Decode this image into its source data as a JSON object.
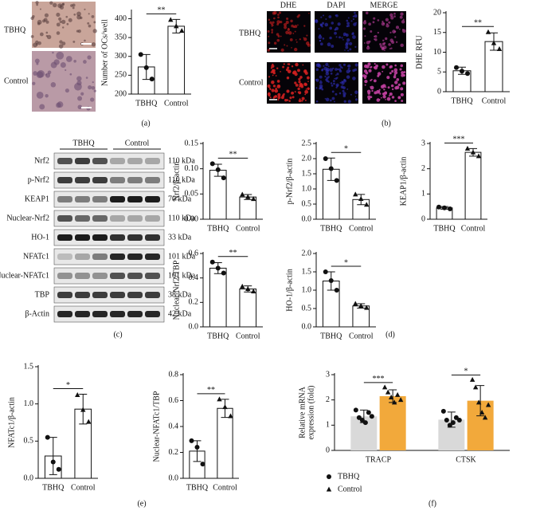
{
  "panel_labels": [
    "(a)",
    "(b)",
    "(c)",
    "(d)",
    "(e)",
    "(f)"
  ],
  "micrographs_a": {
    "rows": [
      "TBHQ",
      "Control"
    ]
  },
  "micrographs_b": {
    "columns": [
      "DHE",
      "DAPI",
      "MERGE"
    ],
    "rows": [
      "TBHQ",
      "Control"
    ]
  },
  "blot": {
    "groups": [
      "TBHQ",
      "Control"
    ],
    "rows": [
      {
        "label": "Nrf2",
        "kda": "110 kDa"
      },
      {
        "label": "p-Nrf2",
        "kda": "110 kDa"
      },
      {
        "label": "KEAP1",
        "kda": "70 kDa"
      },
      {
        "label": "Nuclear-Nrf2",
        "kda": "110 kDa"
      },
      {
        "label": "HO-1",
        "kda": "33 kDa"
      },
      {
        "label": "NFATc1",
        "kda": "101 kDa"
      },
      {
        "label": "Nuclear-NFATc1",
        "kda": "101 kDa"
      },
      {
        "label": "TBP",
        "kda": "38 kDa"
      },
      {
        "label": "β-Actin",
        "kda": "42 kDa"
      }
    ]
  },
  "chart_data": [
    {
      "type": "bar",
      "ylabel": [
        "Number of OCs/well"
      ],
      "categories": [
        "TBHQ",
        "Control"
      ],
      "values": [
        272,
        380
      ],
      "errors": [
        33,
        18
      ],
      "points": [
        [
          305,
          270,
          240
        ],
        [
          397,
          380,
          368
        ]
      ],
      "markers": [
        "circle",
        "triangle"
      ],
      "significance": "**",
      "ylim": [
        200,
        420
      ],
      "yticks": [
        200,
        250,
        300,
        350,
        400
      ]
    },
    {
      "type": "bar",
      "ylabel": [
        "DHE RFU"
      ],
      "categories": [
        "TBHQ",
        "Control"
      ],
      "values": [
        5.3,
        12.7
      ],
      "errors": [
        0.9,
        2.2
      ],
      "points": [
        [
          6.1,
          5.2,
          4.6
        ],
        [
          15.1,
          12.3,
          10.8
        ]
      ],
      "markers": [
        "circle",
        "triangle"
      ],
      "significance": "**",
      "ylim": [
        0,
        20
      ],
      "yticks": [
        0,
        5,
        10,
        15,
        20
      ]
    },
    {
      "type": "bar",
      "ylabel": [
        "Nrf2/β-actin"
      ],
      "categories": [
        "TBHQ",
        "Control"
      ],
      "values": [
        0.097,
        0.044
      ],
      "errors": [
        0.012,
        0.005
      ],
      "points": [
        [
          0.11,
          0.098,
          0.082
        ],
        [
          0.049,
          0.044,
          0.04
        ]
      ],
      "markers": [
        "circle",
        "triangle"
      ],
      "significance": "**",
      "ylim": [
        0,
        0.15
      ],
      "yticks": [
        {
          "value": 0,
          "label": "0.00"
        },
        0.05,
        {
          "value": 0.1,
          "label": "0.10"
        },
        0.15
      ]
    },
    {
      "type": "bar",
      "ylabel": [
        "p-Nrf2/β-actin"
      ],
      "categories": [
        "TBHQ",
        "Control"
      ],
      "values": [
        1.65,
        0.65
      ],
      "errors": [
        0.37,
        0.17
      ],
      "points": [
        [
          2.0,
          1.67,
          1.28
        ],
        [
          0.82,
          0.67,
          0.48
        ]
      ],
      "markers": [
        "circle",
        "triangle"
      ],
      "significance": "*",
      "ylim": [
        0,
        2.5
      ],
      "yticks": [
        {
          "value": 0,
          "label": "0.0"
        },
        0.5,
        {
          "value": 1,
          "label": "1.0"
        },
        1.5,
        {
          "value": 2,
          "label": "2.0"
        },
        2.5
      ]
    },
    {
      "type": "bar",
      "ylabel": [
        "KEAP1/β-actin"
      ],
      "categories": [
        "TBHQ",
        "Control"
      ],
      "values": [
        0.45,
        2.65
      ],
      "errors": [
        0.05,
        0.15
      ],
      "points": [
        [
          0.48,
          0.45,
          0.41
        ],
        [
          2.8,
          2.65,
          2.5
        ]
      ],
      "markers": [
        "circle",
        "triangle"
      ],
      "significance": "***",
      "ylim": [
        0,
        3
      ],
      "yticks": [
        0,
        1,
        2,
        3
      ]
    },
    {
      "type": "bar",
      "ylabel": [
        "Nuclear-Nrf2/TBP"
      ],
      "categories": [
        "TBHQ",
        "Control"
      ],
      "values": [
        0.48,
        0.31
      ],
      "errors": [
        0.045,
        0.025
      ],
      "points": [
        [
          0.53,
          0.48,
          0.44
        ],
        [
          0.33,
          0.31,
          0.29
        ]
      ],
      "markers": [
        "circle",
        "triangle"
      ],
      "significance": "**",
      "ylim": [
        0,
        0.6
      ],
      "yticks": [
        {
          "value": 0,
          "label": "0.0"
        },
        0.2,
        0.4,
        0.6
      ]
    },
    {
      "type": "bar",
      "ylabel": [
        "HO-1/β-actin"
      ],
      "categories": [
        "TBHQ",
        "Control"
      ],
      "values": [
        1.25,
        0.57
      ],
      "errors": [
        0.25,
        0.06
      ],
      "points": [
        [
          1.5,
          1.26,
          1.0
        ],
        [
          0.63,
          0.57,
          0.52
        ]
      ],
      "markers": [
        "circle",
        "triangle"
      ],
      "significance": "*",
      "ylim": [
        0,
        2
      ],
      "yticks": [
        {
          "value": 0,
          "label": "0.0"
        },
        0.5,
        {
          "value": 1,
          "label": "1.0"
        },
        1.5,
        {
          "value": 2,
          "label": "2.0"
        }
      ]
    },
    {
      "type": "bar",
      "ylabel": [
        "NFATc1/β-actin"
      ],
      "categories": [
        "TBHQ",
        "Control"
      ],
      "values": [
        0.3,
        0.93
      ],
      "errors": [
        0.25,
        0.2
      ],
      "points": [
        [
          0.55,
          0.22,
          0.12
        ],
        [
          1.12,
          0.92,
          0.76
        ]
      ],
      "markers": [
        "circle",
        "triangle"
      ],
      "significance": "*",
      "ylim": [
        0,
        1.5
      ],
      "yticks": [
        {
          "value": 0,
          "label": "0.0"
        },
        0.5,
        {
          "value": 1,
          "label": "1.0"
        },
        1.5
      ]
    },
    {
      "type": "bar",
      "ylabel": [
        "Nuclear-NFATc1/TBP"
      ],
      "categories": [
        "TBHQ",
        "Control"
      ],
      "values": [
        0.21,
        0.54
      ],
      "errors": [
        0.08,
        0.07
      ],
      "points": [
        [
          0.29,
          0.24,
          0.11
        ],
        [
          0.61,
          0.55,
          0.48
        ]
      ],
      "markers": [
        "circle",
        "triangle"
      ],
      "significance": "**",
      "ylim": [
        0,
        0.8
      ],
      "yticks": [
        {
          "value": 0,
          "label": "0.0"
        },
        0.2,
        0.4,
        0.6,
        0.8
      ]
    },
    {
      "type": "grouped_bar",
      "ylabel": [
        "Relative mRNA",
        "expression (fold)"
      ],
      "categories": [
        "TRACP",
        "CTSK"
      ],
      "series": [
        {
          "name": "TBHQ",
          "color": "#d9d9d9",
          "marker": "circle",
          "values": [
            1.35,
            1.22
          ],
          "errors": [
            0.25,
            0.3
          ],
          "points": [
            [
              1.6,
              1.3,
              1.2,
              1.1,
              1.5,
              1.35
            ],
            [
              1.55,
              1.2,
              1.0,
              1.1,
              1.3,
              1.2
            ]
          ]
        },
        {
          "name": "Control",
          "color": "#f2a93b",
          "marker": "triangle",
          "values": [
            2.15,
            1.97
          ],
          "errors": [
            0.25,
            0.6
          ],
          "points": [
            [
              2.5,
              2.3,
              2.1,
              1.9,
              2.2,
              2.0
            ],
            [
              2.8,
              2.5,
              1.9,
              1.5,
              1.3,
              1.8
            ]
          ]
        }
      ],
      "significance": [
        "***",
        "*"
      ],
      "ylim": [
        0,
        3
      ],
      "yticks": [
        0,
        1,
        2,
        3
      ]
    }
  ]
}
